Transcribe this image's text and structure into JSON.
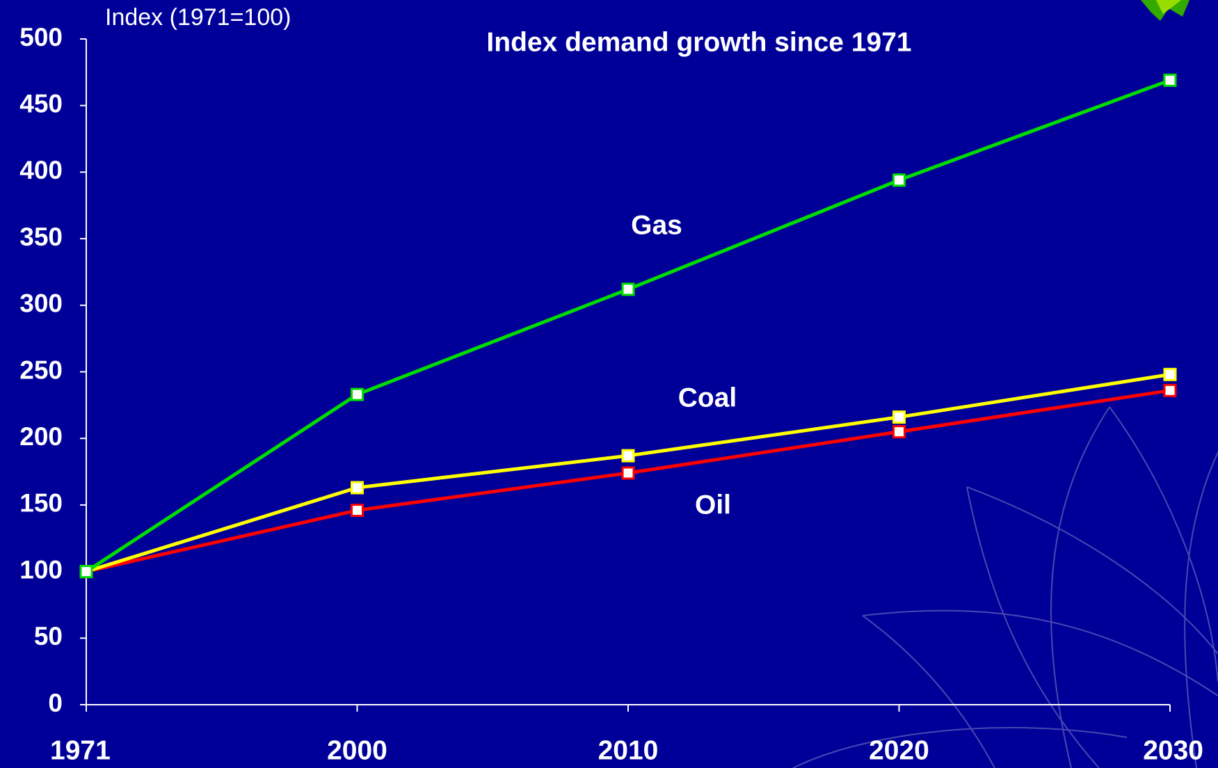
{
  "chart_data": {
    "type": "line",
    "title": "Index demand growth since 1971",
    "y_label": "Index (1971=100)",
    "categories": [
      "1971",
      "2000",
      "2010",
      "2020",
      "2030"
    ],
    "series": [
      {
        "name": "Gas",
        "color": "#00dd00",
        "values": [
          100,
          233,
          312,
          394,
          469
        ]
      },
      {
        "name": "Coal",
        "color": "#ffff00",
        "values": [
          100,
          163,
          187,
          216,
          248
        ]
      },
      {
        "name": "Oil",
        "color": "#ff0000",
        "values": [
          100,
          146,
          174,
          205,
          236
        ]
      }
    ],
    "ylim": [
      0,
      500
    ],
    "yticks": [
      0,
      50,
      100,
      150,
      200,
      250,
      300,
      350,
      400,
      450,
      500
    ],
    "grid": false
  }
}
